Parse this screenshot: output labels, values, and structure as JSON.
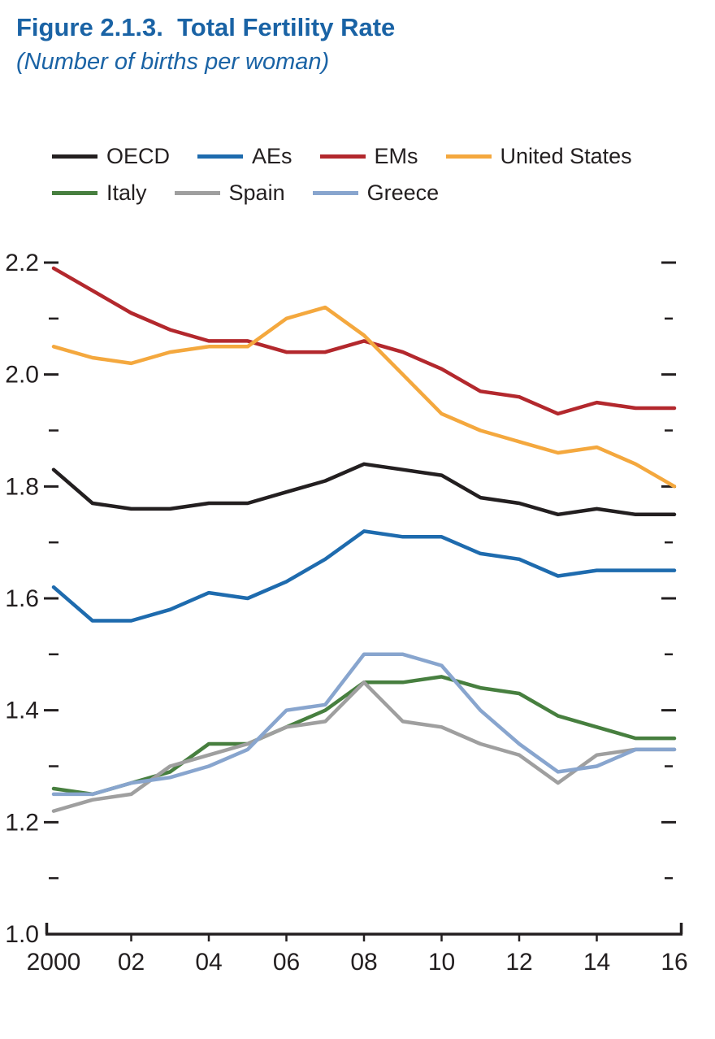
{
  "figure": {
    "title": "Figure 2.1.3.  Total Fertility Rate",
    "subtitle": "(Number of births per woman)"
  },
  "colors": {
    "title_blue": "#1a63a5",
    "axis": "#231f20",
    "background": "#ffffff"
  },
  "chart_data": {
    "type": "line",
    "title": "Figure 2.1.3. Total Fertility Rate",
    "subtitle": "(Number of births per woman)",
    "xlabel": "",
    "ylabel": "",
    "ylim": [
      1.0,
      2.2
    ],
    "grid": false,
    "legend_position": "top",
    "x": [
      2000,
      2001,
      2002,
      2003,
      2004,
      2005,
      2006,
      2007,
      2008,
      2009,
      2010,
      2011,
      2012,
      2013,
      2014,
      2015,
      2016
    ],
    "x_tick_labels": [
      "2000",
      "02",
      "04",
      "06",
      "08",
      "10",
      "12",
      "14",
      "16"
    ],
    "y_ticks": [
      {
        "value": 2.2,
        "label": "2.2"
      },
      {
        "value": 2.0,
        "label": "2.0"
      },
      {
        "value": 1.8,
        "label": "1.8"
      },
      {
        "value": 1.6,
        "label": "1.6"
      },
      {
        "value": 1.4,
        "label": "1.4"
      },
      {
        "value": 1.2,
        "label": "1.2"
      },
      {
        "value": 1.0,
        "label": "1.0"
      }
    ],
    "y_minor_ticks": [
      2.1,
      1.9,
      1.7,
      1.5,
      1.3,
      1.1
    ],
    "series": [
      {
        "name": "OECD",
        "color": "#231f20",
        "values": [
          1.83,
          1.77,
          1.76,
          1.76,
          1.77,
          1.77,
          1.79,
          1.81,
          1.84,
          1.83,
          1.82,
          1.78,
          1.77,
          1.75,
          1.76,
          1.75,
          1.75
        ]
      },
      {
        "name": "AEs",
        "color": "#1e6bae",
        "values": [
          1.62,
          1.56,
          1.56,
          1.58,
          1.61,
          1.6,
          1.63,
          1.67,
          1.72,
          1.71,
          1.71,
          1.68,
          1.67,
          1.64,
          1.65,
          1.65,
          1.65
        ]
      },
      {
        "name": "EMs",
        "color": "#b3282d",
        "values": [
          2.19,
          2.15,
          2.11,
          2.08,
          2.06,
          2.06,
          2.04,
          2.04,
          2.06,
          2.04,
          2.01,
          1.97,
          1.96,
          1.93,
          1.95,
          1.94,
          1.94
        ]
      },
      {
        "name": "United States",
        "color": "#f4a83e",
        "values": [
          2.05,
          2.03,
          2.02,
          2.04,
          2.05,
          2.05,
          2.1,
          2.12,
          2.07,
          2.0,
          1.93,
          1.9,
          1.88,
          1.86,
          1.87,
          1.84,
          1.8
        ]
      },
      {
        "name": "Italy",
        "color": "#477f3f",
        "values": [
          1.26,
          1.25,
          1.27,
          1.29,
          1.34,
          1.34,
          1.37,
          1.4,
          1.45,
          1.45,
          1.46,
          1.44,
          1.43,
          1.39,
          1.37,
          1.35,
          1.35
        ]
      },
      {
        "name": "Spain",
        "color": "#9f9f9f",
        "values": [
          1.22,
          1.24,
          1.25,
          1.3,
          1.32,
          1.34,
          1.37,
          1.38,
          1.45,
          1.38,
          1.37,
          1.34,
          1.32,
          1.27,
          1.32,
          1.33,
          1.33
        ]
      },
      {
        "name": "Greece",
        "color": "#88a5ce",
        "values": [
          1.25,
          1.25,
          1.27,
          1.28,
          1.3,
          1.33,
          1.4,
          1.41,
          1.5,
          1.5,
          1.48,
          1.4,
          1.34,
          1.29,
          1.3,
          1.33,
          1.33
        ]
      }
    ],
    "legend_rows": [
      [
        0,
        1,
        2,
        3
      ],
      [
        4,
        5,
        6
      ]
    ]
  }
}
